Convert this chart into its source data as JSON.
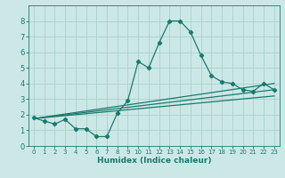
{
  "title": "",
  "xlabel": "Humidex (Indice chaleur)",
  "xlim": [
    -0.5,
    23.5
  ],
  "ylim": [
    0,
    9
  ],
  "background_color": "#cce8e6",
  "grid_color": "#aed4d0",
  "line_color": "#1a7a6e",
  "x_ticks": [
    0,
    1,
    2,
    3,
    4,
    5,
    6,
    7,
    8,
    9,
    10,
    11,
    12,
    13,
    14,
    15,
    16,
    17,
    18,
    19,
    20,
    21,
    22,
    23
  ],
  "y_ticks": [
    0,
    1,
    2,
    3,
    4,
    5,
    6,
    7,
    8
  ],
  "main_line_x": [
    0,
    1,
    2,
    3,
    4,
    5,
    6,
    7,
    8,
    9,
    10,
    11,
    12,
    13,
    14,
    15,
    16,
    17,
    18,
    19,
    20,
    21,
    22,
    23
  ],
  "main_line_y": [
    1.8,
    1.6,
    1.4,
    1.7,
    1.1,
    1.1,
    0.6,
    0.6,
    2.1,
    2.9,
    5.4,
    5.0,
    6.6,
    8.0,
    8.0,
    7.3,
    5.8,
    4.5,
    4.1,
    4.0,
    3.6,
    3.5,
    4.0,
    3.6
  ],
  "trend1_x": [
    0,
    23
  ],
  "trend1_y": [
    1.75,
    4.0
  ],
  "trend2_x": [
    0,
    23
  ],
  "trend2_y": [
    1.75,
    3.6
  ],
  "trend3_x": [
    0,
    23
  ],
  "trend3_y": [
    1.75,
    3.2
  ]
}
